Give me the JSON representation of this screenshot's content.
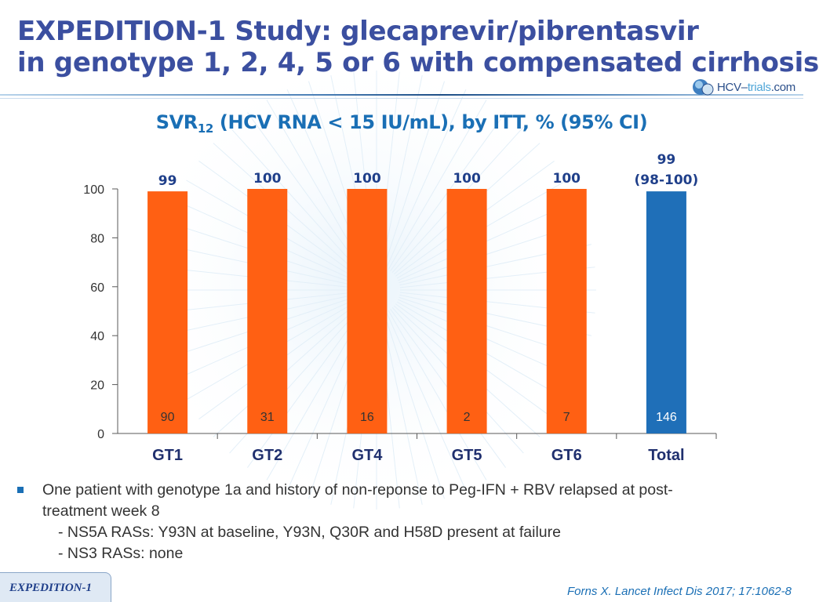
{
  "header": {
    "title_line1": "EXPEDITION-1 Study: glecaprevir/pibrentasvir",
    "title_line2": "in genotype 1, 2, 4, 5 or 6 with compensated cirrhosis",
    "logo_main": "HCV–",
    "logo_trials": "trials",
    "logo_tld": ".com",
    "colors": {
      "title": "#3b4fa0",
      "accent": "#1a6fb5"
    }
  },
  "chart_data": {
    "type": "bar",
    "title_main": "SVR",
    "title_sub": "12",
    "title_rest": " (HCV RNA < 15 IU/mL), by ITT, % (95% CI)",
    "categories": [
      "GT1",
      "GT2",
      "GT4",
      "GT5",
      "GT6",
      "Total"
    ],
    "values": [
      99,
      100,
      100,
      100,
      100,
      99
    ],
    "value_labels": [
      "99",
      "100",
      "100",
      "100",
      "100",
      "99"
    ],
    "ci_labels": [
      "",
      "",
      "",
      "",
      "",
      "(98-100)"
    ],
    "n_labels": [
      "90",
      "31",
      "16",
      "2",
      "7",
      "146"
    ],
    "bar_colors": [
      "#ff6013",
      "#ff6013",
      "#ff6013",
      "#ff6013",
      "#ff6013",
      "#1f6fb8"
    ],
    "y_ticks": [
      0,
      20,
      40,
      60,
      80,
      100
    ],
    "ylim": [
      0,
      100
    ],
    "xlabel": "",
    "ylabel": ""
  },
  "notes": {
    "bullet_line1": "One patient with genotype 1a and history of non-reponse to Peg-IFN + RBV relapsed at post-",
    "bullet_line2": "treatment week 8",
    "sub1": "- NS5A RASs: Y93N at baseline, Y93N, Q30R and H58D present at failure",
    "sub2": "- NS3 RASs: none"
  },
  "footer": {
    "tab": "EXPEDITION-1",
    "citation": "Forns X. Lancet Infect Dis 2017; 17:1062-8"
  }
}
